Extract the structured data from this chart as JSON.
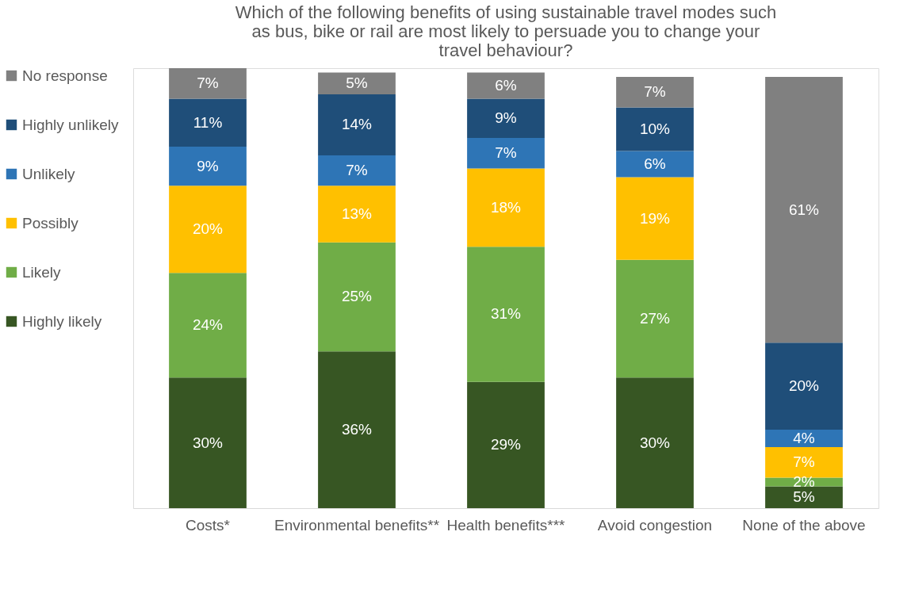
{
  "chart_data": {
    "type": "bar",
    "stacked": true,
    "legend": "left",
    "grid": false,
    "title": "Which of the following benefits of using sustainable travel modes such as bus, bike or rail are most likely to persuade you to change your travel behaviour?",
    "categories": [
      "Costs*",
      "Environmental benefits**",
      "Health benefits***",
      "Avoid congestion",
      "None of the above"
    ],
    "series": [
      {
        "name": "Highly likely",
        "color": "#375623",
        "values": [
          30,
          36,
          29,
          30,
          5
        ],
        "value_labels": [
          "30%",
          "36%",
          "29%",
          "30%",
          "5%"
        ]
      },
      {
        "name": "Likely",
        "color": "#70ad47",
        "values": [
          24,
          25,
          31,
          27,
          2
        ],
        "value_labels": [
          "24%",
          "25%",
          "31%",
          "27%",
          "2%"
        ]
      },
      {
        "name": "Possibly",
        "color": "#ffc000",
        "values": [
          20,
          13,
          18,
          19,
          7
        ],
        "value_labels": [
          "20%",
          "13%",
          "18%",
          "19%",
          "7%"
        ]
      },
      {
        "name": "Unlikely",
        "color": "#2e75b6",
        "values": [
          9,
          7,
          7,
          6,
          4
        ],
        "value_labels": [
          "9%",
          "7%",
          "7%",
          "6%",
          "4%"
        ]
      },
      {
        "name": "Highly unlikely",
        "color": "#1f4e79",
        "values": [
          11,
          14,
          9,
          10,
          20
        ],
        "value_labels": [
          "11%",
          "14%",
          "9%",
          "10%",
          "20%"
        ]
      },
      {
        "name": "No response",
        "color": "#808080",
        "values": [
          7,
          5,
          6,
          7,
          61
        ],
        "value_labels": [
          "7%",
          "5%",
          "6%",
          "7%",
          "61%"
        ]
      }
    ]
  }
}
